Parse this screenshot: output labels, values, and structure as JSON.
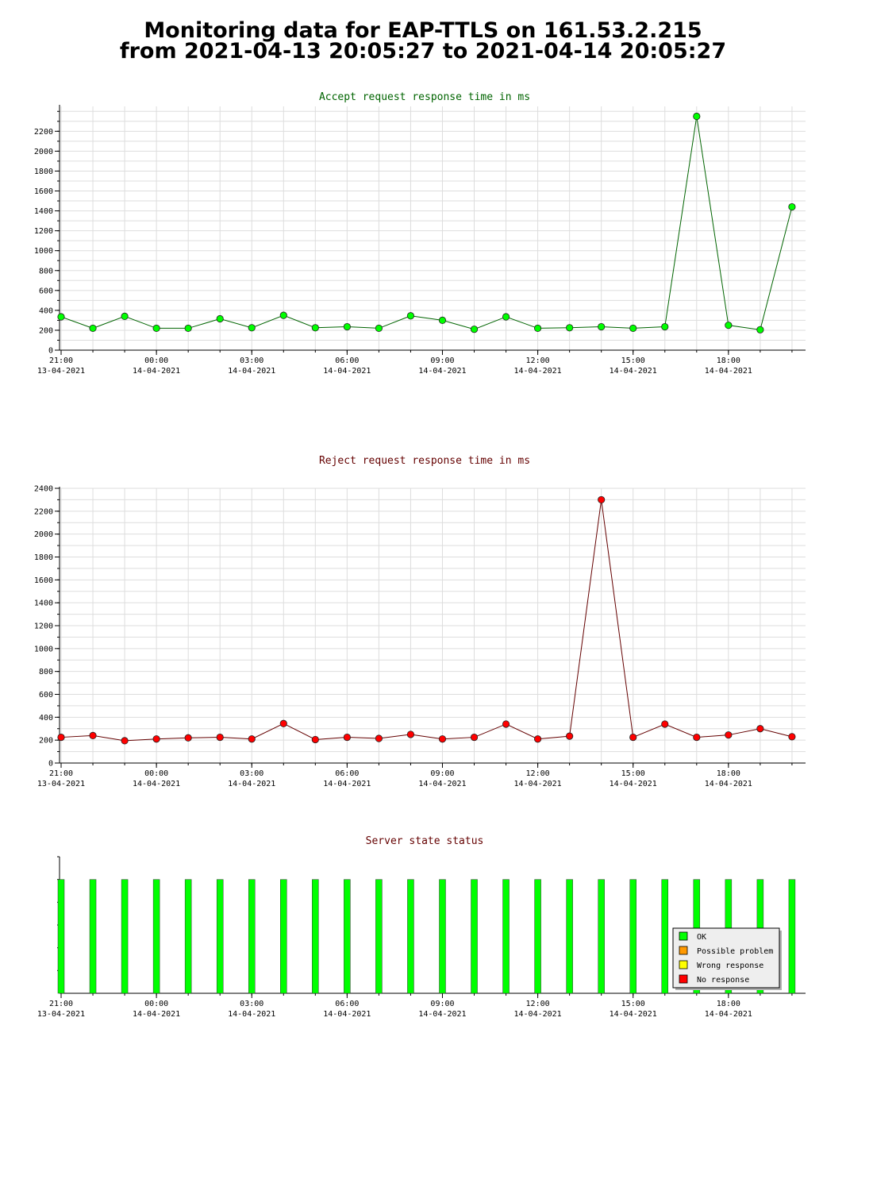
{
  "page": {
    "title_line1": "Monitoring data for EAP-TTLS on 161.53.2.215",
    "title_line2": "from 2021-04-13 20:05:27 to 2021-04-14 20:05:27"
  },
  "colors": {
    "accept_title": "#006400",
    "reject_title": "#640000",
    "status_title": "#640000",
    "accept_line": "#006400",
    "accept_marker": "#00ff00",
    "reject_line": "#640000",
    "reject_marker": "#ff0000",
    "ok": "#00ff00",
    "possible_problem": "#ff9900",
    "wrong_response": "#ffff00",
    "no_response": "#ff0000",
    "grid": "#dddddd",
    "legend_bg": "#eeeeee"
  },
  "chart_data": [
    {
      "id": "accept",
      "type": "line",
      "title": "Accept request response time in ms",
      "xlabel": "",
      "ylabel": "",
      "ylim": [
        0,
        2450
      ],
      "yticks": [
        0,
        200,
        400,
        600,
        800,
        1000,
        1200,
        1400,
        1600,
        1800,
        2000,
        2200
      ],
      "x_ticks": [
        {
          "time": "21:00",
          "date": "13-04-2021"
        },
        {
          "time": "00:00",
          "date": "14-04-2021"
        },
        {
          "time": "03:00",
          "date": "14-04-2021"
        },
        {
          "time": "06:00",
          "date": "14-04-2021"
        },
        {
          "time": "09:00",
          "date": "14-04-2021"
        },
        {
          "time": "12:00",
          "date": "14-04-2021"
        },
        {
          "time": "15:00",
          "date": "14-04-2021"
        },
        {
          "time": "18:00",
          "date": "14-04-2021"
        }
      ],
      "grid": true,
      "x": [
        "2021-04-13 21:00",
        "2021-04-13 22:00",
        "2021-04-13 23:00",
        "2021-04-14 00:00",
        "2021-04-14 01:00",
        "2021-04-14 02:00",
        "2021-04-14 03:00",
        "2021-04-14 04:00",
        "2021-04-14 05:00",
        "2021-04-14 06:00",
        "2021-04-14 07:00",
        "2021-04-14 08:00",
        "2021-04-14 09:00",
        "2021-04-14 10:00",
        "2021-04-14 11:00",
        "2021-04-14 12:00",
        "2021-04-14 13:00",
        "2021-04-14 14:00",
        "2021-04-14 15:00",
        "2021-04-14 16:00",
        "2021-04-14 17:00",
        "2021-04-14 18:00",
        "2021-04-14 19:00",
        "2021-04-14 20:00"
      ],
      "values": [
        335,
        220,
        340,
        220,
        220,
        315,
        225,
        350,
        225,
        235,
        220,
        345,
        300,
        210,
        335,
        220,
        225,
        235,
        220,
        235,
        2350,
        250,
        205,
        1440
      ]
    },
    {
      "id": "reject",
      "type": "line",
      "title": "Reject request response time in ms",
      "xlabel": "",
      "ylabel": "",
      "ylim": [
        0,
        2400
      ],
      "yticks": [
        0,
        200,
        400,
        600,
        800,
        1000,
        1200,
        1400,
        1600,
        1800,
        2000,
        2200,
        2400
      ],
      "x_ticks": [
        {
          "time": "21:00",
          "date": "13-04-2021"
        },
        {
          "time": "00:00",
          "date": "14-04-2021"
        },
        {
          "time": "03:00",
          "date": "14-04-2021"
        },
        {
          "time": "06:00",
          "date": "14-04-2021"
        },
        {
          "time": "09:00",
          "date": "14-04-2021"
        },
        {
          "time": "12:00",
          "date": "14-04-2021"
        },
        {
          "time": "15:00",
          "date": "14-04-2021"
        },
        {
          "time": "18:00",
          "date": "14-04-2021"
        }
      ],
      "grid": true,
      "x": [
        "2021-04-13 21:00",
        "2021-04-13 22:00",
        "2021-04-13 23:00",
        "2021-04-14 00:00",
        "2021-04-14 01:00",
        "2021-04-14 02:00",
        "2021-04-14 03:00",
        "2021-04-14 04:00",
        "2021-04-14 05:00",
        "2021-04-14 06:00",
        "2021-04-14 07:00",
        "2021-04-14 08:00",
        "2021-04-14 09:00",
        "2021-04-14 10:00",
        "2021-04-14 11:00",
        "2021-04-14 12:00",
        "2021-04-14 13:00",
        "2021-04-14 14:00",
        "2021-04-14 15:00",
        "2021-04-14 16:00",
        "2021-04-14 17:00",
        "2021-04-14 18:00",
        "2021-04-14 19:00",
        "2021-04-14 20:00"
      ],
      "values": [
        225,
        240,
        195,
        210,
        220,
        225,
        210,
        345,
        205,
        225,
        215,
        250,
        210,
        225,
        340,
        210,
        235,
        2300,
        225,
        340,
        225,
        245,
        300,
        230
      ]
    },
    {
      "id": "status",
      "type": "bar",
      "title": "Server state status",
      "xlabel": "",
      "ylabel": "",
      "ylim": [
        0,
        1.2
      ],
      "x_ticks": [
        {
          "time": "21:00",
          "date": "13-04-2021"
        },
        {
          "time": "00:00",
          "date": "14-04-2021"
        },
        {
          "time": "03:00",
          "date": "14-04-2021"
        },
        {
          "time": "06:00",
          "date": "14-04-2021"
        },
        {
          "time": "09:00",
          "date": "14-04-2021"
        },
        {
          "time": "12:00",
          "date": "14-04-2021"
        },
        {
          "time": "15:00",
          "date": "14-04-2021"
        },
        {
          "time": "18:00",
          "date": "14-04-2021"
        }
      ],
      "grid": false,
      "x": [
        "2021-04-13 21:00",
        "2021-04-13 22:00",
        "2021-04-13 23:00",
        "2021-04-14 00:00",
        "2021-04-14 01:00",
        "2021-04-14 02:00",
        "2021-04-14 03:00",
        "2021-04-14 04:00",
        "2021-04-14 05:00",
        "2021-04-14 06:00",
        "2021-04-14 07:00",
        "2021-04-14 08:00",
        "2021-04-14 09:00",
        "2021-04-14 10:00",
        "2021-04-14 11:00",
        "2021-04-14 12:00",
        "2021-04-14 13:00",
        "2021-04-14 14:00",
        "2021-04-14 15:00",
        "2021-04-14 16:00",
        "2021-04-14 17:00",
        "2021-04-14 18:00",
        "2021-04-14 19:00",
        "2021-04-14 20:00"
      ],
      "states": [
        "OK",
        "OK",
        "OK",
        "OK",
        "OK",
        "OK",
        "OK",
        "OK",
        "OK",
        "OK",
        "OK",
        "OK",
        "OK",
        "OK",
        "OK",
        "OK",
        "OK",
        "OK",
        "OK",
        "OK",
        "OK",
        "OK",
        "OK",
        "OK"
      ],
      "legend_position": "bottom-right",
      "legend": [
        {
          "label": "OK",
          "color": "#00ff00"
        },
        {
          "label": "Possible problem",
          "color": "#ff9900"
        },
        {
          "label": "Wrong response",
          "color": "#ffff00"
        },
        {
          "label": "No response",
          "color": "#ff0000"
        }
      ]
    }
  ]
}
